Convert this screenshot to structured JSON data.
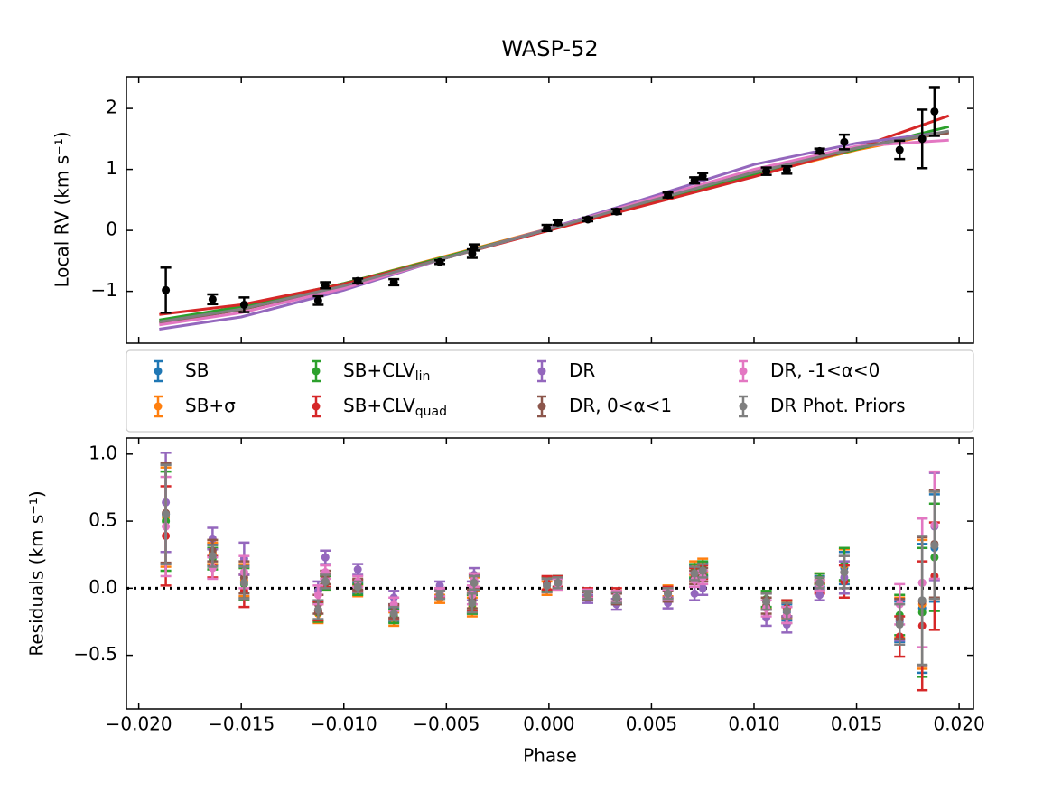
{
  "chart_data": [
    {
      "type": "line",
      "title": "WASP-52",
      "ylabel": "Local RV (km s⁻¹)",
      "xlim": [
        -0.0206,
        0.0207
      ],
      "ylim": [
        -1.85,
        2.52
      ],
      "xticks": [
        -0.02,
        -0.015,
        -0.01,
        -0.005,
        0,
        0.005,
        0.01,
        0.015,
        0.02
      ],
      "yticks": [
        {
          "value": -1,
          "label": "−1"
        },
        0,
        1,
        2
      ],
      "x": [
        -0.019,
        -0.015,
        -0.01,
        -0.005,
        0,
        0.005,
        0.01,
        0.015,
        0.0195
      ],
      "series": [
        {
          "name": "SB",
          "color": "#1f77b4",
          "values": [
            -1.5,
            -1.28,
            -0.9,
            -0.45,
            0.02,
            0.48,
            0.93,
            1.33,
            1.62
          ]
        },
        {
          "name": "SB+σ",
          "color": "#ff7f0e",
          "values": [
            -1.5,
            -1.27,
            -0.87,
            -0.42,
            0.03,
            0.46,
            0.9,
            1.32,
            1.62
          ]
        },
        {
          "name": "SB+CLV",
          "name_sub": "lin",
          "color": "#2ca02c",
          "values": [
            -1.47,
            -1.25,
            -0.87,
            -0.43,
            0.02,
            0.47,
            0.92,
            1.33,
            1.7
          ]
        },
        {
          "name": "SB+CLV",
          "name_sub": "quad",
          "color": "#d62728",
          "values": [
            -1.38,
            -1.22,
            -0.88,
            -0.45,
            0.0,
            0.44,
            0.88,
            1.35,
            1.88
          ]
        },
        {
          "name": "DR",
          "color": "#9467bd",
          "values": [
            -1.62,
            -1.42,
            -0.98,
            -0.45,
            0.03,
            0.55,
            1.08,
            1.43,
            1.62
          ]
        },
        {
          "name": "DR, 0<α<1",
          "color": "#8c564b",
          "values": [
            -1.52,
            -1.3,
            -0.92,
            -0.45,
            0.02,
            0.5,
            0.97,
            1.37,
            1.6
          ]
        },
        {
          "name": "DR, -1<α<0",
          "color": "#e377c2",
          "values": [
            -1.55,
            -1.35,
            -0.95,
            -0.45,
            0.02,
            0.52,
            1.0,
            1.38,
            1.48
          ]
        },
        {
          "name": "DR Phot. Priors",
          "color": "#7f7f7f",
          "values": [
            -1.5,
            -1.29,
            -0.91,
            -0.45,
            0.02,
            0.49,
            0.95,
            1.35,
            1.63
          ]
        }
      ],
      "observations": {
        "color": "#000000",
        "x": [
          -0.01868,
          -0.0164,
          -0.01486,
          -0.01125,
          -0.0109,
          -0.00932,
          -0.00756,
          -0.00532,
          -0.00374,
          -0.00365,
          -0.0001,
          0.00044,
          0.0019,
          0.0033,
          0.0058,
          0.0071,
          0.0075,
          0.0106,
          0.0116,
          0.0132,
          0.0144,
          0.0171,
          0.0182,
          0.0188
        ],
        "values": [
          -0.98,
          -1.13,
          -1.22,
          -1.15,
          -0.9,
          -0.83,
          -0.85,
          -0.52,
          -0.38,
          -0.28,
          0.04,
          0.13,
          0.18,
          0.31,
          0.58,
          0.82,
          0.89,
          0.97,
          0.99,
          1.3,
          1.45,
          1.32,
          1.5,
          1.95
        ],
        "errors": [
          0.37,
          0.08,
          0.12,
          0.07,
          0.05,
          0.04,
          0.05,
          0.03,
          0.07,
          0.05,
          0.05,
          0.04,
          0.03,
          0.04,
          0.04,
          0.05,
          0.05,
          0.06,
          0.06,
          0.04,
          0.12,
          0.15,
          0.48,
          0.4
        ]
      }
    },
    {
      "type": "scatter",
      "ylabel": "Residuals (km s⁻¹)",
      "xlabel": "Phase",
      "xlim": [
        -0.0206,
        0.0207
      ],
      "ylim": [
        -0.9,
        1.12
      ],
      "hline": 0,
      "xticks": [
        {
          "value": -0.02,
          "label": "−0.020"
        },
        {
          "value": -0.015,
          "label": "−0.015"
        },
        {
          "value": -0.01,
          "label": "−0.010"
        },
        {
          "value": -0.005,
          "label": "−0.005"
        },
        {
          "value": 0,
          "label": "0.000"
        },
        {
          "value": 0.005,
          "label": "0.005"
        },
        {
          "value": 0.01,
          "label": "0.010"
        },
        {
          "value": 0.015,
          "label": "0.015"
        },
        {
          "value": 0.02,
          "label": "0.020"
        }
      ],
      "yticks": [
        {
          "value": -0.5,
          "label": "−0.5"
        },
        {
          "value": 0,
          "label": "0.0"
        },
        {
          "value": 0.5,
          "label": "0.5"
        },
        {
          "value": 1,
          "label": "1.0"
        }
      ],
      "x": [
        -0.01868,
        -0.0164,
        -0.01486,
        -0.01125,
        -0.0109,
        -0.00932,
        -0.00756,
        -0.00532,
        -0.00374,
        -0.00365,
        -0.0001,
        0.00044,
        0.0019,
        0.0033,
        0.0058,
        0.0071,
        0.0075,
        0.0106,
        0.0116,
        0.0132,
        0.0144,
        0.0171,
        0.0182,
        0.0188
      ],
      "errors": [
        0.37,
        0.08,
        0.12,
        0.07,
        0.05,
        0.04,
        0.05,
        0.03,
        0.07,
        0.05,
        0.05,
        0.04,
        0.03,
        0.04,
        0.04,
        0.05,
        0.05,
        0.06,
        0.06,
        0.04,
        0.12,
        0.15,
        0.48,
        0.4
      ],
      "series": [
        {
          "color": "#1f77b4",
          "values": [
            0.55,
            0.25,
            0.05,
            -0.17,
            0.05,
            0.0,
            -0.2,
            -0.05,
            -0.12,
            0.05,
            0.03,
            0.05,
            -0.06,
            -0.08,
            -0.05,
            0.12,
            0.14,
            -0.1,
            -0.18,
            0.05,
            0.15,
            -0.25,
            -0.15,
            0.3
          ]
        },
        {
          "color": "#ff7f0e",
          "values": [
            0.53,
            0.26,
            0.06,
            -0.19,
            0.04,
            -0.02,
            -0.23,
            -0.08,
            -0.14,
            0.03,
            0.0,
            0.03,
            -0.05,
            -0.06,
            -0.02,
            0.15,
            0.17,
            -0.09,
            -0.16,
            0.07,
            0.17,
            -0.22,
            -0.12,
            0.32
          ]
        },
        {
          "color": "#2ca02c",
          "values": [
            0.5,
            0.22,
            0.03,
            -0.18,
            0.04,
            -0.01,
            -0.21,
            -0.05,
            -0.12,
            0.04,
            0.03,
            0.05,
            -0.05,
            -0.07,
            -0.04,
            0.13,
            0.15,
            -0.08,
            -0.15,
            0.07,
            0.18,
            -0.2,
            -0.18,
            0.23
          ]
        },
        {
          "color": "#d62728",
          "values": [
            0.39,
            0.16,
            -0.02,
            -0.17,
            0.06,
            0.02,
            -0.18,
            -0.04,
            -0.1,
            0.05,
            0.04,
            0.05,
            -0.03,
            -0.04,
            -0.03,
            0.1,
            0.12,
            -0.1,
            -0.15,
            0.0,
            0.05,
            -0.36,
            -0.28,
            0.09
          ]
        },
        {
          "color": "#9467bd",
          "values": [
            0.64,
            0.37,
            0.22,
            -0.02,
            0.23,
            0.14,
            -0.07,
            0.02,
            -0.02,
            0.1,
            0.02,
            0.03,
            -0.08,
            -0.12,
            -0.11,
            -0.04,
            0.0,
            -0.22,
            -0.27,
            -0.05,
            0.08,
            -0.24,
            0.04,
            0.46
          ]
        },
        {
          "color": "#8c564b",
          "values": [
            0.56,
            0.28,
            0.08,
            -0.12,
            0.08,
            0.03,
            -0.17,
            -0.03,
            -0.08,
            0.06,
            0.02,
            0.04,
            -0.06,
            -0.08,
            -0.06,
            0.08,
            0.1,
            -0.13,
            -0.2,
            0.02,
            0.12,
            -0.23,
            -0.1,
            0.33
          ]
        },
        {
          "color": "#e377c2",
          "values": [
            0.46,
            0.15,
            0.12,
            -0.05,
            0.12,
            0.05,
            -0.12,
            -0.03,
            -0.05,
            0.06,
            0.02,
            0.03,
            -0.04,
            -0.06,
            -0.05,
            0.06,
            0.08,
            -0.15,
            -0.2,
            0.02,
            0.12,
            -0.12,
            0.04,
            0.47
          ]
        },
        {
          "color": "#7f7f7f",
          "values": [
            0.55,
            0.24,
            0.04,
            -0.16,
            0.05,
            0.01,
            -0.19,
            -0.05,
            -0.11,
            0.04,
            0.02,
            0.04,
            -0.05,
            -0.07,
            -0.04,
            0.11,
            0.13,
            -0.1,
            -0.17,
            0.04,
            0.12,
            -0.27,
            -0.09,
            0.32
          ]
        }
      ]
    }
  ]
}
